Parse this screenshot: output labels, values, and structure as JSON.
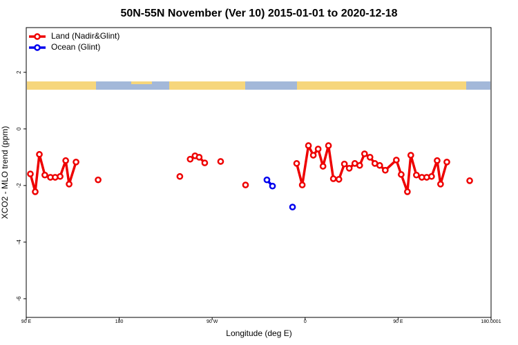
{
  "chart_data": {
    "type": "line",
    "title": "50N-55N November (Ver 10)   2015-01-01 to 2020-12-18",
    "x_label": "Longitude (deg E)",
    "y_label": "XCO2 - MLO trend (ppm)",
    "xlim": [
      90,
      540
    ],
    "xticks": [
      {
        "value": 90,
        "label": "90 E"
      },
      180,
      {
        "value": 270,
        "label": "90 W"
      },
      {
        "value": 360,
        "label": "0"
      },
      {
        "value": 450,
        "label": "90 E"
      },
      180.0001
    ],
    "ylim": [
      -6.66,
      3.58
    ],
    "yticks": [
      2,
      0,
      -2,
      -4,
      -6
    ],
    "legend": "top-left",
    "series": [
      {
        "name": "Land (Nadir&Glint)",
        "color": "#ee0000",
        "x": [
          94,
          98.7,
          102.7,
          108,
          113.4,
          118,
          122.8,
          128.2,
          131.5,
          138.2,
          null,
          159.6,
          null,
          238.7,
          null,
          248.7,
          253.4,
          257.4,
          262.8,
          null,
          278.2,
          null,
          302.3,
          null,
          351.8,
          357.2,
          363.2,
          367.9,
          372.6,
          377.3,
          382.6,
          387.3,
          392.7,
          398,
          402.7,
          408.1,
          412.8,
          417.5,
          422.8,
          427.5,
          432.2,
          437.6,
          448.3,
          453,
          459,
          462.3,
          467.7,
          473,
          477.7,
          482.4,
          487.8,
          491.1,
          497.2,
          null,
          519.3
        ],
        "values": [
          -1.59,
          -2.22,
          -0.9,
          -1.63,
          -1.71,
          -1.71,
          -1.68,
          -1.12,
          -1.95,
          -1.17,
          null,
          -1.8,
          null,
          -1.68,
          null,
          -1.07,
          -0.95,
          -1.0,
          -1.2,
          null,
          -1.15,
          null,
          -1.98,
          null,
          -1.22,
          -1.98,
          -0.59,
          -0.93,
          -0.71,
          -1.32,
          -0.59,
          -1.76,
          -1.78,
          -1.24,
          -1.39,
          -1.22,
          -1.29,
          -0.88,
          -1.0,
          -1.22,
          -1.29,
          -1.46,
          -1.1,
          -1.61,
          -2.22,
          -0.93,
          -1.63,
          -1.71,
          -1.71,
          -1.68,
          -1.12,
          -1.95,
          -1.17,
          null,
          -1.83
        ]
      },
      {
        "name": "Ocean (Glint)",
        "color": "#0000ee",
        "x": [
          323,
          328.4,
          null,
          347.8
        ],
        "values": [
          -1.8,
          -2.02,
          null,
          -2.76
        ]
      }
    ]
  }
}
